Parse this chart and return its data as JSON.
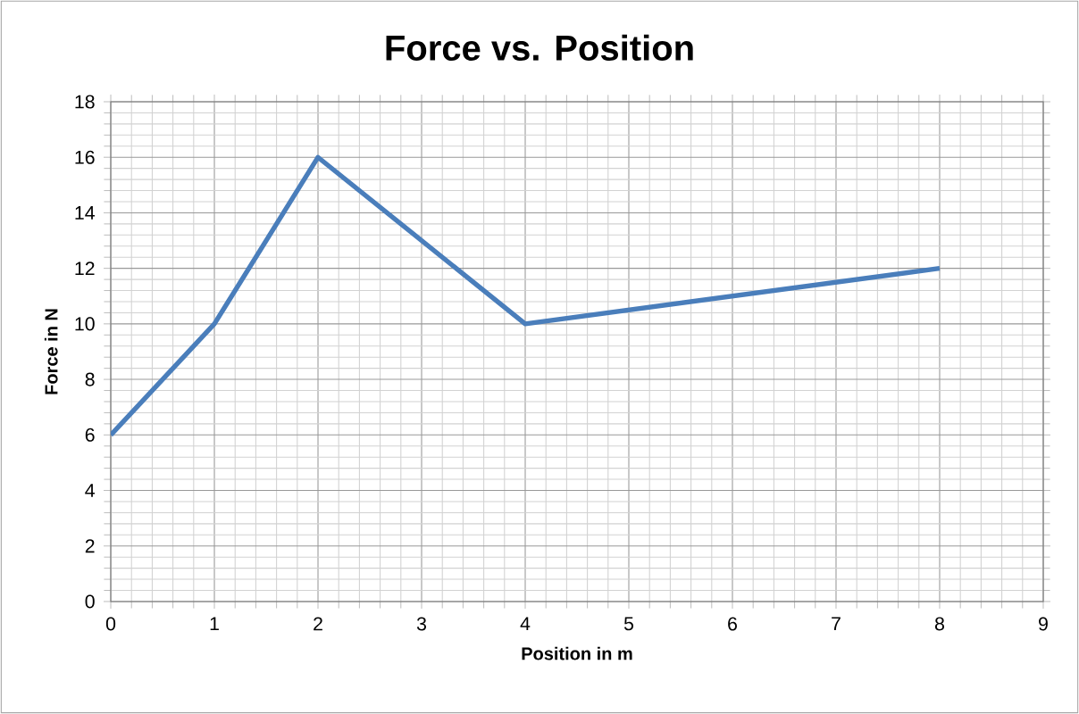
{
  "chart_data": {
    "type": "line",
    "title": "Force vs. Position",
    "xlabel": "Position in m",
    "ylabel": "Force in N",
    "x": [
      0,
      1,
      2,
      4,
      8
    ],
    "series": [
      {
        "color": "#4a7ebb",
        "values": [
          6,
          10,
          16,
          10,
          12
        ]
      }
    ],
    "xlim": [
      0,
      9
    ],
    "ylim": [
      0,
      18
    ],
    "xticks": [
      0,
      1,
      2,
      3,
      4,
      5,
      6,
      7,
      8,
      9
    ],
    "yticks": [
      0,
      2,
      4,
      6,
      8,
      10,
      12,
      14,
      16,
      18
    ],
    "grid": true,
    "marker": "none",
    "line_style": "solid"
  }
}
